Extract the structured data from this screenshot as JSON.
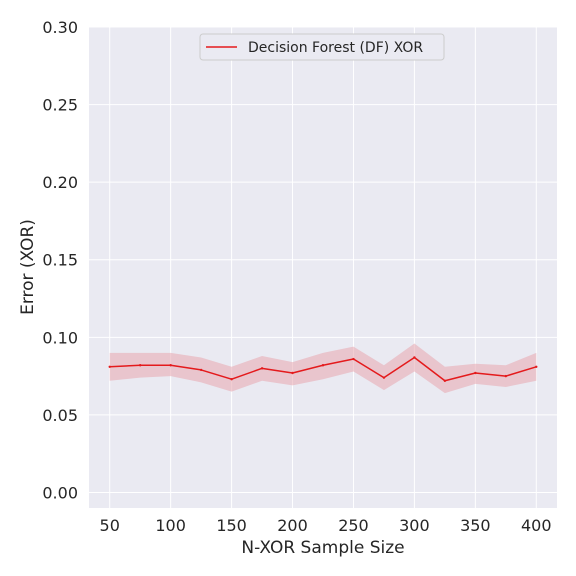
{
  "chart_data": {
    "type": "line",
    "xlabel": "N-XOR Sample Size",
    "ylabel": "Error (XOR)",
    "xlim": [
      33,
      417
    ],
    "ylim": [
      -0.01,
      0.3
    ],
    "xticks": [
      50,
      100,
      150,
      200,
      250,
      300,
      350,
      400
    ],
    "xtick_labels": [
      "50",
      "100",
      "150",
      "200",
      "250",
      "300",
      "350",
      "400"
    ],
    "yticks": [
      0.0,
      0.05,
      0.1,
      0.15,
      0.2,
      0.25,
      0.3
    ],
    "ytick_labels": [
      "0.00",
      "0.05",
      "0.10",
      "0.15",
      "0.20",
      "0.25",
      "0.30"
    ],
    "grid": true,
    "legend_position": "top-center",
    "background_color": "#eaeaf2",
    "series": [
      {
        "name": "Decision Forest (DF) XOR",
        "color": "#e41a1c",
        "band_color": "#e8a6ae",
        "x": [
          50,
          75,
          100,
          125,
          150,
          175,
          200,
          225,
          250,
          275,
          300,
          325,
          350,
          375,
          400
        ],
        "y": [
          0.081,
          0.082,
          0.082,
          0.079,
          0.073,
          0.08,
          0.077,
          0.082,
          0.086,
          0.074,
          0.087,
          0.072,
          0.077,
          0.075,
          0.081
        ],
        "lower": [
          0.072,
          0.074,
          0.075,
          0.071,
          0.065,
          0.072,
          0.069,
          0.073,
          0.078,
          0.066,
          0.078,
          0.064,
          0.07,
          0.068,
          0.072
        ],
        "upper": [
          0.09,
          0.09,
          0.09,
          0.087,
          0.081,
          0.088,
          0.084,
          0.09,
          0.094,
          0.082,
          0.096,
          0.081,
          0.083,
          0.082,
          0.09
        ]
      }
    ]
  }
}
